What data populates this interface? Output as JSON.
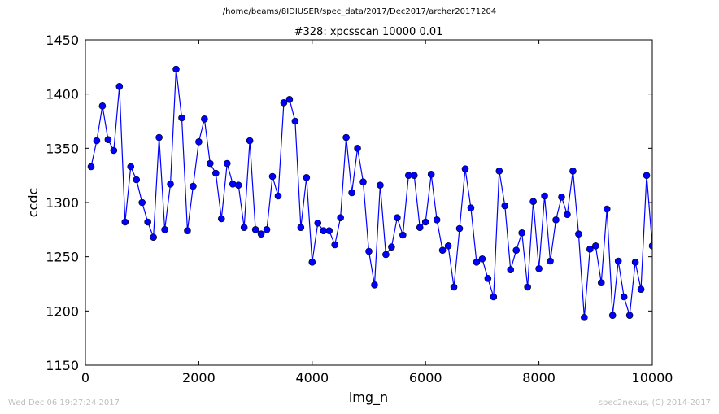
{
  "header": {
    "path": "/home/beams/8IDIUSER/spec_data/2017/Dec2017/archer20171204"
  },
  "footer": {
    "left": "Wed Dec 06 19:27:24 2017",
    "right": "spec2nexus, (C) 2014-2017"
  },
  "chart_data": {
    "type": "line",
    "title": "#328: xpcsscan 10000 0.01",
    "xlabel": "img_n",
    "ylabel": "ccdc",
    "xlim": [
      0,
      10000
    ],
    "ylim": [
      1150,
      1450
    ],
    "xticks": [
      0,
      2000,
      4000,
      6000,
      8000,
      10000
    ],
    "yticks": [
      1150,
      1200,
      1250,
      1300,
      1350,
      1400,
      1450
    ],
    "grid": false,
    "line_color": "#0000ff",
    "marker": "circle",
    "series": [
      {
        "x": [
          100,
          200,
          300,
          400,
          500,
          600,
          700,
          800,
          900,
          1000,
          1100,
          1200,
          1300,
          1400,
          1500,
          1600,
          1700,
          1800,
          1900,
          2000,
          2100,
          2200,
          2300,
          2400,
          2500,
          2600,
          2700,
          2800,
          2900,
          3000,
          3100,
          3200,
          3300,
          3400,
          3500,
          3600,
          3700,
          3800,
          3900,
          4000,
          4100,
          4200,
          4300,
          4400,
          4500,
          4600,
          4700,
          4800,
          4900,
          5000,
          5100,
          5200,
          5300,
          5400,
          5500,
          5600,
          5700,
          5800,
          5900,
          6000,
          6100,
          6200,
          6300,
          6400,
          6500,
          6600,
          6700,
          6800,
          6900,
          7000,
          7100,
          7200,
          7300,
          7400,
          7500,
          7600,
          7700,
          7800,
          7900,
          8000,
          8100,
          8200,
          8300,
          8400,
          8500,
          8600,
          8700,
          8800,
          8900,
          9000,
          9100,
          9200,
          9300,
          9400,
          9500,
          9600,
          9700,
          9800,
          9900,
          10000
        ],
        "y": [
          1333,
          1357,
          1389,
          1358,
          1348,
          1407,
          1282,
          1333,
          1321,
          1300,
          1282,
          1268,
          1360,
          1275,
          1317,
          1423,
          1378,
          1274,
          1315,
          1356,
          1377,
          1336,
          1327,
          1285,
          1336,
          1317,
          1316,
          1277,
          1357,
          1275,
          1271,
          1275,
          1324,
          1306,
          1392,
          1395,
          1375,
          1277,
          1323,
          1245,
          1281,
          1274,
          1274,
          1261,
          1286,
          1360,
          1309,
          1350,
          1319,
          1255,
          1224,
          1316,
          1252,
          1259,
          1286,
          1270,
          1325,
          1325,
          1277,
          1282,
          1326,
          1284,
          1256,
          1260,
          1222,
          1276,
          1331,
          1295,
          1245,
          1248,
          1230,
          1213,
          1329,
          1297,
          1238,
          1256,
          1272,
          1222,
          1301,
          1239,
          1306,
          1246,
          1284,
          1305,
          1289,
          1329,
          1271,
          1194,
          1257,
          1260,
          1226,
          1294,
          1196,
          1246,
          1213,
          1196,
          1245,
          1220,
          1325,
          1260
        ]
      }
    ]
  }
}
